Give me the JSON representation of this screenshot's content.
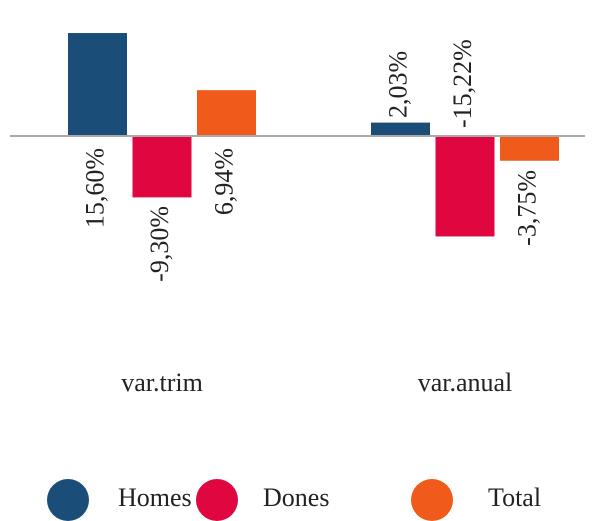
{
  "chart_data": {
    "type": "bar",
    "categories": [
      "var.trim",
      "var.anual"
    ],
    "series": [
      {
        "name": "Homes",
        "color": "#1a4e78",
        "values": [
          15.6,
          2.03
        ],
        "value_labels": [
          "15,60%",
          "2,03%"
        ]
      },
      {
        "name": "Dones",
        "color": "#e0063f",
        "values": [
          -9.3,
          -15.22
        ],
        "value_labels": [
          "-9,30%",
          "-15,22%"
        ]
      },
      {
        "name": "Total",
        "color": "#f05a1a",
        "values": [
          6.94,
          -3.75
        ],
        "value_labels": [
          "6,94%",
          "-3,75%"
        ]
      }
    ]
  }
}
